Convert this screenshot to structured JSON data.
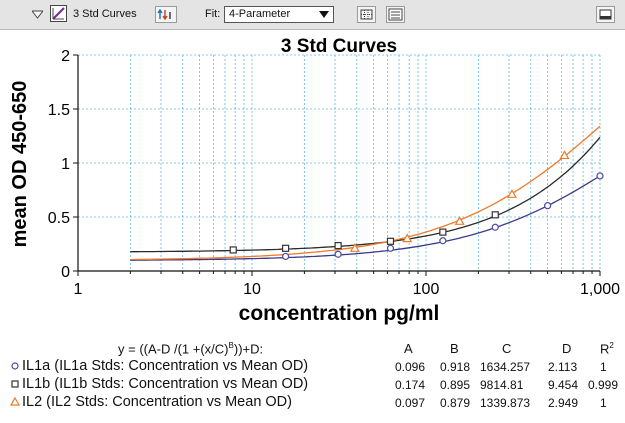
{
  "toolbar": {
    "plot_name": "3 Std Curves",
    "fit_label": "Fit:",
    "fit_value": "4-Parameter"
  },
  "chart_data": {
    "type": "scatter",
    "title": "3 Std Curves",
    "xlabel": "concentration pg/ml",
    "ylabel": "mean OD 450-650",
    "x_scale": "log",
    "xlim": [
      1,
      1000
    ],
    "ylim": [
      0,
      2
    ],
    "x_ticks": [
      1,
      10,
      100,
      1000
    ],
    "x_tick_labels": [
      "1",
      "10",
      "100",
      "1,000"
    ],
    "y_ticks": [
      0,
      0.5,
      1,
      1.5,
      2
    ],
    "y_tick_labels": [
      "0",
      "0.5",
      "1",
      "1.5",
      "2"
    ],
    "grid": true,
    "series": [
      {
        "name": "IL1a",
        "marker": "circle",
        "color": "#4a4aa6",
        "line_color": "#3a3a8c",
        "fit": {
          "A": 0.096,
          "B": 0.918,
          "C": 1634.257,
          "D": 2.113
        },
        "x": [
          15.6,
          31.25,
          62.5,
          125,
          250,
          500,
          1000
        ],
        "y": [
          0.135,
          0.155,
          0.21,
          0.28,
          0.405,
          0.605,
          0.88
        ]
      },
      {
        "name": "IL1b",
        "marker": "square",
        "color": "#333333",
        "line_color": "#2a2a2a",
        "fit": {
          "A": 0.174,
          "B": 0.895,
          "C": 9814.81,
          "D": 9.454
        },
        "x": [
          7.8,
          15.6,
          31.25,
          62.5,
          125,
          250
        ],
        "y": [
          0.195,
          0.21,
          0.235,
          0.275,
          0.36,
          0.52
        ]
      },
      {
        "name": "IL2",
        "marker": "triangle",
        "color": "#f07a28",
        "line_color": "#f07a28",
        "fit": {
          "A": 0.097,
          "B": 0.879,
          "C": 1339.873,
          "D": 2.949
        },
        "x": [
          39,
          78,
          156,
          312,
          625
        ],
        "y": [
          0.21,
          0.3,
          0.46,
          0.71,
          1.07
        ]
      }
    ]
  },
  "equation": {
    "formula_pre": "y = ((A-D /(1 +(x/C)",
    "formula_sup": "B",
    "formula_post": "))+D:",
    "headers": {
      "a": "A",
      "b": "B",
      "c": "C",
      "d": "D",
      "r2": "R",
      "r2_sup": "2"
    },
    "rows": [
      {
        "label": "IL1a (IL1a Stds: Concentration vs Mean OD)",
        "a": "0.096",
        "b": "0.918",
        "c": "1634.257",
        "d": "2.113",
        "r2": "1"
      },
      {
        "label": "IL1b (IL1b Stds: Concentration vs Mean OD)",
        "a": "0.174",
        "b": "0.895",
        "c": "9814.81",
        "d": "9.454",
        "r2": "0.999"
      },
      {
        "label": "IL2 (IL2 Stds: Concentration vs Mean OD)",
        "a": "0.097",
        "b": "0.879",
        "c": "1339.873",
        "d": "2.949",
        "r2": "1"
      }
    ]
  }
}
